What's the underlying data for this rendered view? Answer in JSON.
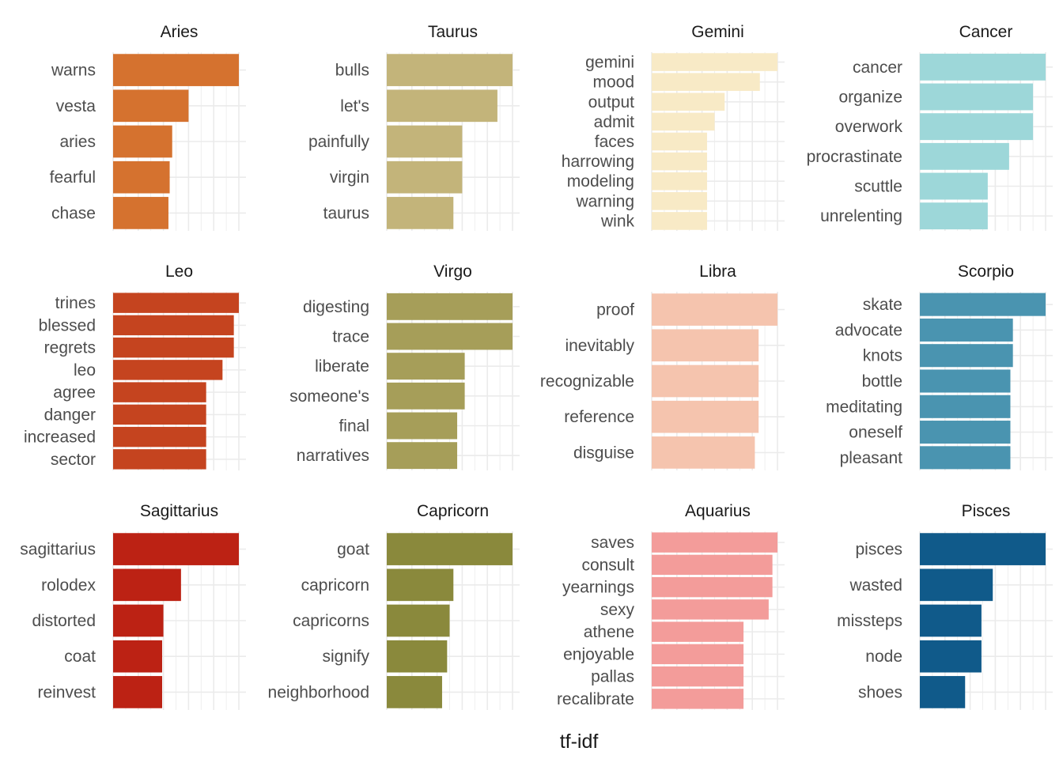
{
  "chart_data": {
    "type": "bar",
    "orientation": "horizontal",
    "layout": "facet_wrap 3x4, free y scales",
    "xlabel": "tf-idf",
    "ylabel": "",
    "grid": true,
    "panels": [
      {
        "title": "Aries",
        "color": "#D5722F",
        "categories": [
          "warns",
          "vesta",
          "aries",
          "fearful",
          "chase"
        ],
        "values": [
          1.0,
          0.6,
          0.47,
          0.45,
          0.44
        ]
      },
      {
        "title": "Taurus",
        "color": "#C3B47A",
        "categories": [
          "bulls",
          "let's",
          "painfully",
          "virgin",
          "taurus"
        ],
        "values": [
          1.0,
          0.88,
          0.6,
          0.6,
          0.53
        ]
      },
      {
        "title": "Gemini",
        "color": "#F8EAC6",
        "categories": [
          "gemini",
          "mood",
          "output",
          "admit",
          "faces",
          "harrowing",
          "modeling",
          "warning",
          "wink"
        ],
        "values": [
          1.0,
          0.86,
          0.58,
          0.5,
          0.44,
          0.44,
          0.44,
          0.44,
          0.44
        ]
      },
      {
        "title": "Cancer",
        "color": "#9DD7D9",
        "categories": [
          "cancer",
          "organize",
          "overwork",
          "procrastinate",
          "scuttle",
          "unrelenting"
        ],
        "values": [
          1.0,
          0.9,
          0.9,
          0.71,
          0.54,
          0.54
        ]
      },
      {
        "title": "Leo",
        "color": "#C5441F",
        "categories": [
          "trines",
          "blessed",
          "regrets",
          "leo",
          "agree",
          "danger",
          "increased",
          "sector"
        ],
        "values": [
          1.0,
          0.96,
          0.96,
          0.87,
          0.74,
          0.74,
          0.74,
          0.74
        ]
      },
      {
        "title": "Virgo",
        "color": "#A69E59",
        "categories": [
          "digesting",
          "trace",
          "liberate",
          "someone's",
          "final",
          "narratives"
        ],
        "values": [
          1.0,
          1.0,
          0.62,
          0.62,
          0.56,
          0.56
        ]
      },
      {
        "title": "Libra",
        "color": "#F5C4AE",
        "categories": [
          "proof",
          "inevitably",
          "recognizable",
          "reference",
          "disguise"
        ],
        "values": [
          1.0,
          0.85,
          0.85,
          0.85,
          0.82
        ]
      },
      {
        "title": "Scorpio",
        "color": "#4A94B0",
        "categories": [
          "skate",
          "advocate",
          "knots",
          "bottle",
          "meditating",
          "oneself",
          "pleasant"
        ],
        "values": [
          1.0,
          0.74,
          0.74,
          0.72,
          0.72,
          0.72,
          0.72
        ]
      },
      {
        "title": "Sagittarius",
        "color": "#BC2214",
        "categories": [
          "sagittarius",
          "rolodex",
          "distorted",
          "coat",
          "reinvest"
        ],
        "values": [
          1.0,
          0.54,
          0.4,
          0.39,
          0.39
        ]
      },
      {
        "title": "Capricorn",
        "color": "#8A893C",
        "categories": [
          "goat",
          "capricorn",
          "capricorns",
          "signify",
          "neighborhood"
        ],
        "values": [
          1.0,
          0.53,
          0.5,
          0.48,
          0.44
        ]
      },
      {
        "title": "Aquarius",
        "color": "#F39C9A",
        "categories": [
          "saves",
          "consult",
          "yearnings",
          "sexy",
          "athene",
          "enjoyable",
          "pallas",
          "recalibrate"
        ],
        "values": [
          1.0,
          0.96,
          0.96,
          0.93,
          0.73,
          0.73,
          0.73,
          0.73
        ]
      },
      {
        "title": "Pisces",
        "color": "#105A8A",
        "categories": [
          "pisces",
          "wasted",
          "missteps",
          "node",
          "shoes"
        ],
        "values": [
          1.0,
          0.58,
          0.49,
          0.49,
          0.36
        ]
      }
    ]
  }
}
